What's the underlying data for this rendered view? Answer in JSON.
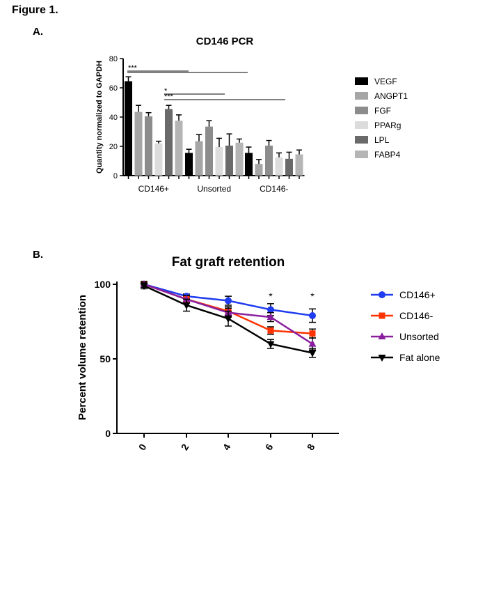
{
  "figure_title": "Figure 1.",
  "panels": {
    "a_label": "A.",
    "b_label": "B."
  },
  "chart_data": [
    {
      "type": "bar",
      "title": "CD146 PCR",
      "xlabel": "",
      "ylabel": "Quantity normalized to GAPDH",
      "ylim": [
        0,
        80
      ],
      "yticks": [
        "0",
        "20",
        "40",
        "60",
        "80"
      ],
      "categories": [
        "CD146+",
        "Unsorted",
        "CD146-"
      ],
      "legend_position": "right",
      "series": [
        {
          "name": "VEGF",
          "color": "#000000",
          "values": [
            64.5,
            15.5,
            15.5
          ],
          "errors": [
            3.0,
            2.5,
            4.0
          ]
        },
        {
          "name": "ANGPT1",
          "color": "#a6a6a6",
          "values": [
            43.5,
            23.5,
            8.0
          ],
          "errors": [
            4.5,
            4.5,
            3.0
          ]
        },
        {
          "name": "FGF",
          "color": "#8c8c8c",
          "values": [
            40.5,
            33.5,
            20.5
          ],
          "errors": [
            2.5,
            4.0,
            3.5
          ]
        },
        {
          "name": "PPARg",
          "color": "#dcdcdc",
          "values": [
            22.0,
            19.5,
            12.5
          ],
          "errors": [
            1.5,
            6.0,
            3.0
          ]
        },
        {
          "name": "LPL",
          "color": "#6a6a6a",
          "values": [
            45.5,
            20.5,
            11.5
          ],
          "errors": [
            2.5,
            8.0,
            4.5
          ]
        },
        {
          "name": "FABP4",
          "color": "#b5b5b5",
          "values": [
            37.5,
            22.5,
            14.5
          ],
          "errors": [
            4.0,
            2.5,
            3.0
          ]
        }
      ],
      "significance": [
        {
          "label": "***",
          "from": "CD146+",
          "to": "Unsorted"
        },
        {
          "label": "",
          "from": "CD146+",
          "to": "CD146-"
        },
        {
          "label": "*",
          "from": "Unsorted",
          "to": "CD146-"
        },
        {
          "label": "***",
          "from": "Unsorted",
          "to": "CD146-"
        }
      ]
    },
    {
      "type": "line",
      "title": "Fat graft retention",
      "xlabel": "",
      "ylabel": "Percent volume retention",
      "x": [
        0,
        2,
        4,
        6,
        8
      ],
      "xticks": [
        "0",
        "2",
        "4",
        "6",
        "8"
      ],
      "ylim": [
        0,
        100
      ],
      "yticks": [
        "0",
        "50",
        "100"
      ],
      "legend_position": "right",
      "series": [
        {
          "name": "CD146+",
          "color": "#1f3cf0",
          "marker": "circle",
          "values": [
            100,
            92,
            89,
            83,
            79
          ],
          "errors": [
            2,
            1.5,
            3,
            4,
            4.5
          ]
        },
        {
          "name": "CD146-",
          "color": "#ff3300",
          "marker": "square",
          "values": [
            100,
            90,
            82,
            69,
            67
          ],
          "errors": [
            2,
            2,
            3,
            2.5,
            3
          ]
        },
        {
          "name": "Unsorted",
          "color": "#8a1f9e",
          "marker": "triangle-up",
          "values": [
            100,
            90,
            81,
            78,
            60
          ],
          "errors": [
            2,
            2.5,
            3,
            3,
            4
          ]
        },
        {
          "name": "Fat alone",
          "color": "#000000",
          "marker": "triangle-down",
          "values": [
            99,
            86,
            77,
            60,
            54
          ],
          "errors": [
            2,
            4,
            5,
            3,
            3
          ]
        }
      ],
      "annotations": [
        {
          "text": "*",
          "x": 6
        },
        {
          "text": "*",
          "x": 8
        }
      ]
    }
  ]
}
